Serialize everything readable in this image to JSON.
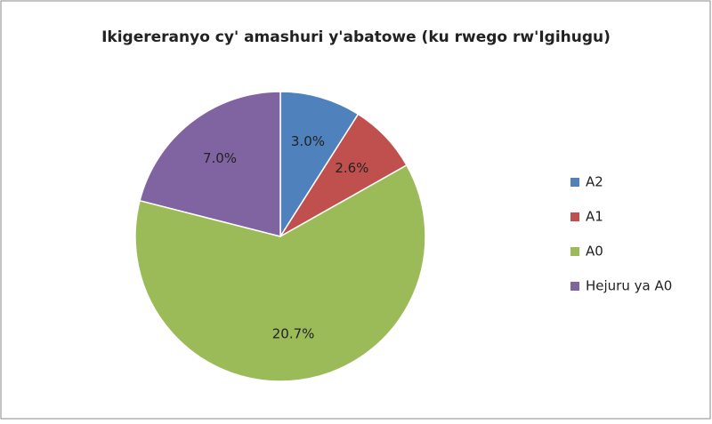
{
  "chart_data": {
    "type": "pie",
    "title": "Ikigereranyo  cy' amashuri y'abatowe (ku rwego rw'Igihugu)",
    "categories": [
      "A2",
      "A1",
      "A0",
      "Hejuru ya A0"
    ],
    "values": [
      3.0,
      2.6,
      20.7,
      7.0
    ],
    "value_labels": [
      "3.0%",
      "2.6%",
      "20.7%",
      "7.0%"
    ],
    "colors": [
      "#4f81bd",
      "#c0504d",
      "#9bbb59",
      "#8064a2"
    ],
    "legend": "right"
  }
}
